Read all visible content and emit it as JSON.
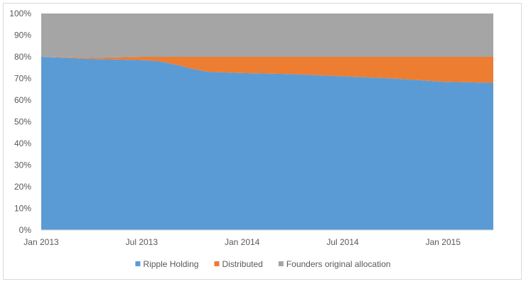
{
  "chart_data": {
    "type": "area",
    "stacked": "percent",
    "x": [
      "2013-01",
      "2013-04",
      "2013-07",
      "2013-08",
      "2013-09",
      "2013-10",
      "2013-11",
      "2014-01",
      "2014-04",
      "2014-07",
      "2014-10",
      "2015-01",
      "2015-04"
    ],
    "x_tick_labels": [
      "Jan 2013",
      "Jul 2013",
      "Jan 2014",
      "Jul 2014",
      "Jan 2015"
    ],
    "series": [
      {
        "name": "Ripple Holding",
        "color": "#5b9bd5",
        "values": [
          80,
          79,
          78.5,
          78,
          76.5,
          74.5,
          73,
          72.5,
          72,
          71,
          70,
          68.5,
          68
        ]
      },
      {
        "name": "Distributed",
        "color": "#ed7d31",
        "values": [
          0,
          0.5,
          1.5,
          2,
          3.5,
          5.5,
          7,
          7.5,
          8,
          9,
          10,
          11.5,
          12
        ]
      },
      {
        "name": "Founders original allocation",
        "color": "#a5a5a5",
        "values": [
          20,
          20.5,
          20,
          20,
          20,
          20,
          20,
          20,
          20,
          20,
          20,
          20,
          20
        ]
      }
    ],
    "y_tick_labels": [
      "0%",
      "10%",
      "20%",
      "30%",
      "40%",
      "50%",
      "60%",
      "70%",
      "80%",
      "90%",
      "100%"
    ],
    "ylim": [
      0,
      100
    ],
    "legend_position": "bottom",
    "title": "",
    "xlabel": "",
    "ylabel": ""
  }
}
